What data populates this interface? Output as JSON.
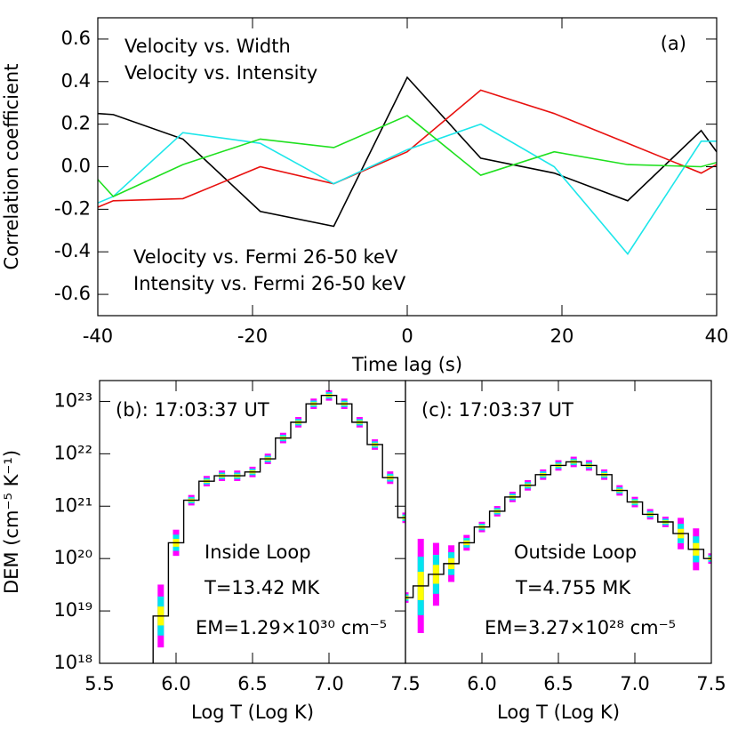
{
  "chart_data": [
    {
      "type": "line",
      "xlabel": "Time lag (s)",
      "ylabel": "Correlation coefficient",
      "annotation": "(a)",
      "x": [
        -40,
        -38,
        -29,
        -19,
        -9.5,
        0,
        9.5,
        19,
        28.5,
        38,
        40
      ],
      "series": [
        {
          "name": "Velocity vs. Width",
          "color": "#000000",
          "values": [
            0.25,
            0.245,
            0.13,
            -0.21,
            -0.28,
            0.42,
            0.04,
            -0.03,
            -0.16,
            0.17,
            0.07
          ]
        },
        {
          "name": "Velocity vs. Intensity",
          "color": "#e8110f",
          "values": [
            -0.19,
            -0.16,
            -0.15,
            0.0,
            -0.08,
            0.07,
            0.36,
            0.25,
            0.11,
            -0.03,
            0.01
          ]
        },
        {
          "name": "Velocity vs. Fermi 26-50 keV",
          "color": "#1de6ea",
          "values": [
            -0.17,
            -0.14,
            0.16,
            0.11,
            -0.08,
            0.08,
            0.2,
            0.0,
            -0.41,
            0.12,
            0.12
          ]
        },
        {
          "name": "Intensity vs. Fermi 26-50 keV",
          "color": "#1fe01f",
          "values": [
            -0.06,
            -0.14,
            0.01,
            0.13,
            0.09,
            0.24,
            -0.04,
            0.07,
            0.01,
            0.0,
            0.02
          ]
        }
      ],
      "xlim": [
        -40,
        40
      ],
      "xticks": [
        -40,
        -20,
        0,
        20,
        40
      ],
      "ylim": [
        -0.7,
        0.7
      ],
      "yticks": [
        -0.6,
        -0.4,
        -0.2,
        {
          "value": 0,
          "label": "0.0"
        },
        0.2,
        0.4,
        0.6
      ]
    },
    {
      "type": "step",
      "xlabel": "Log T (Log K)",
      "ylabel": "DEM (cm⁻⁵ K⁻¹)",
      "log_y": true,
      "annotations": [
        "(b): 17:03:37 UT",
        "Inside Loop",
        "T=13.42 MK",
        "EM=1.29×10³⁰ cm⁻⁵"
      ],
      "color": "#000000",
      "error_colors": [
        "#ff00ff",
        "#00e5ee",
        "#ffff00"
      ],
      "x": [
        5.8,
        5.9,
        6.0,
        6.1,
        6.2,
        6.3,
        6.4,
        6.5,
        6.6,
        6.7,
        6.8,
        6.9,
        7.0,
        7.1,
        7.2,
        7.3,
        7.4,
        7.5
      ],
      "values": [
        5e+17,
        8e+18,
        2e+20,
        1.3e+21,
        3e+21,
        3.8e+21,
        3.8e+21,
        4.5e+21,
        8e+21,
        2e+22,
        4e+22,
        9e+22,
        1.3e+23,
        9e+22,
        4e+22,
        1.5e+22,
        3.5e+21,
        6e+20
      ],
      "error_dex": [
        0.15,
        0.6,
        0.25,
        0.1,
        0.1,
        0.1,
        0.1,
        0.1,
        0.1,
        0.1,
        0.1,
        0.1,
        0.1,
        0.1,
        0.1,
        0.1,
        0.12,
        0.1
      ],
      "xlim": [
        5.5,
        7.5
      ],
      "xticks": [
        5.5,
        {
          "value": 6,
          "label": "6.0"
        },
        6.5,
        {
          "value": 7,
          "label": "7.0"
        },
        7.5
      ],
      "ylim": [
        1e+18,
        2.5e+23
      ],
      "yticks": [
        {
          "value": 1e+18,
          "label": "10¹⁸"
        },
        {
          "value": 1e+19,
          "label": "10¹⁹"
        },
        {
          "value": 1e+20,
          "label": "10²⁰"
        },
        {
          "value": 1e+21,
          "label": "10²¹"
        },
        {
          "value": 1e+22,
          "label": "10²²"
        },
        {
          "value": 1e+23,
          "label": "10²³"
        }
      ]
    },
    {
      "type": "step",
      "xlabel": "Log T (Log K)",
      "log_y": true,
      "annotations": [
        "(c): 17:03:37 UT",
        "Outside Loop",
        "T=4.755 MK",
        "EM=3.27×10²⁸ cm⁻⁵"
      ],
      "color": "#000000",
      "error_colors": [
        "#ff00ff",
        "#00e5ee",
        "#ffff00"
      ],
      "x": [
        5.5,
        5.6,
        5.7,
        5.8,
        5.9,
        6.0,
        6.1,
        6.2,
        6.3,
        6.4,
        6.5,
        6.6,
        6.7,
        6.8,
        6.9,
        7.0,
        7.1,
        7.2,
        7.3,
        7.4,
        7.5
      ],
      "values": [
        1.8e+19,
        3e+19,
        5e+19,
        8e+19,
        2e+20,
        4e+20,
        8e+20,
        1.5e+21,
        2.5e+21,
        4e+21,
        6e+21,
        7e+21,
        6e+21,
        4e+21,
        2e+21,
        1.2e+21,
        7e+20,
        5e+20,
        3e+20,
        1.5e+20,
        1e+20
      ],
      "error_dex": [
        0.1,
        0.9,
        0.6,
        0.35,
        0.15,
        0.1,
        0.1,
        0.1,
        0.1,
        0.1,
        0.1,
        0.1,
        0.1,
        0.1,
        0.1,
        0.1,
        0.1,
        0.1,
        0.3,
        0.4,
        0.1
      ],
      "xlim": [
        5.5,
        7.5
      ],
      "xticks": [
        {
          "value": 6,
          "label": "6.0"
        },
        6.5,
        {
          "value": 7,
          "label": "7.0"
        },
        7.5
      ],
      "ylim": [
        1e+18,
        2.5e+23
      ]
    }
  ]
}
